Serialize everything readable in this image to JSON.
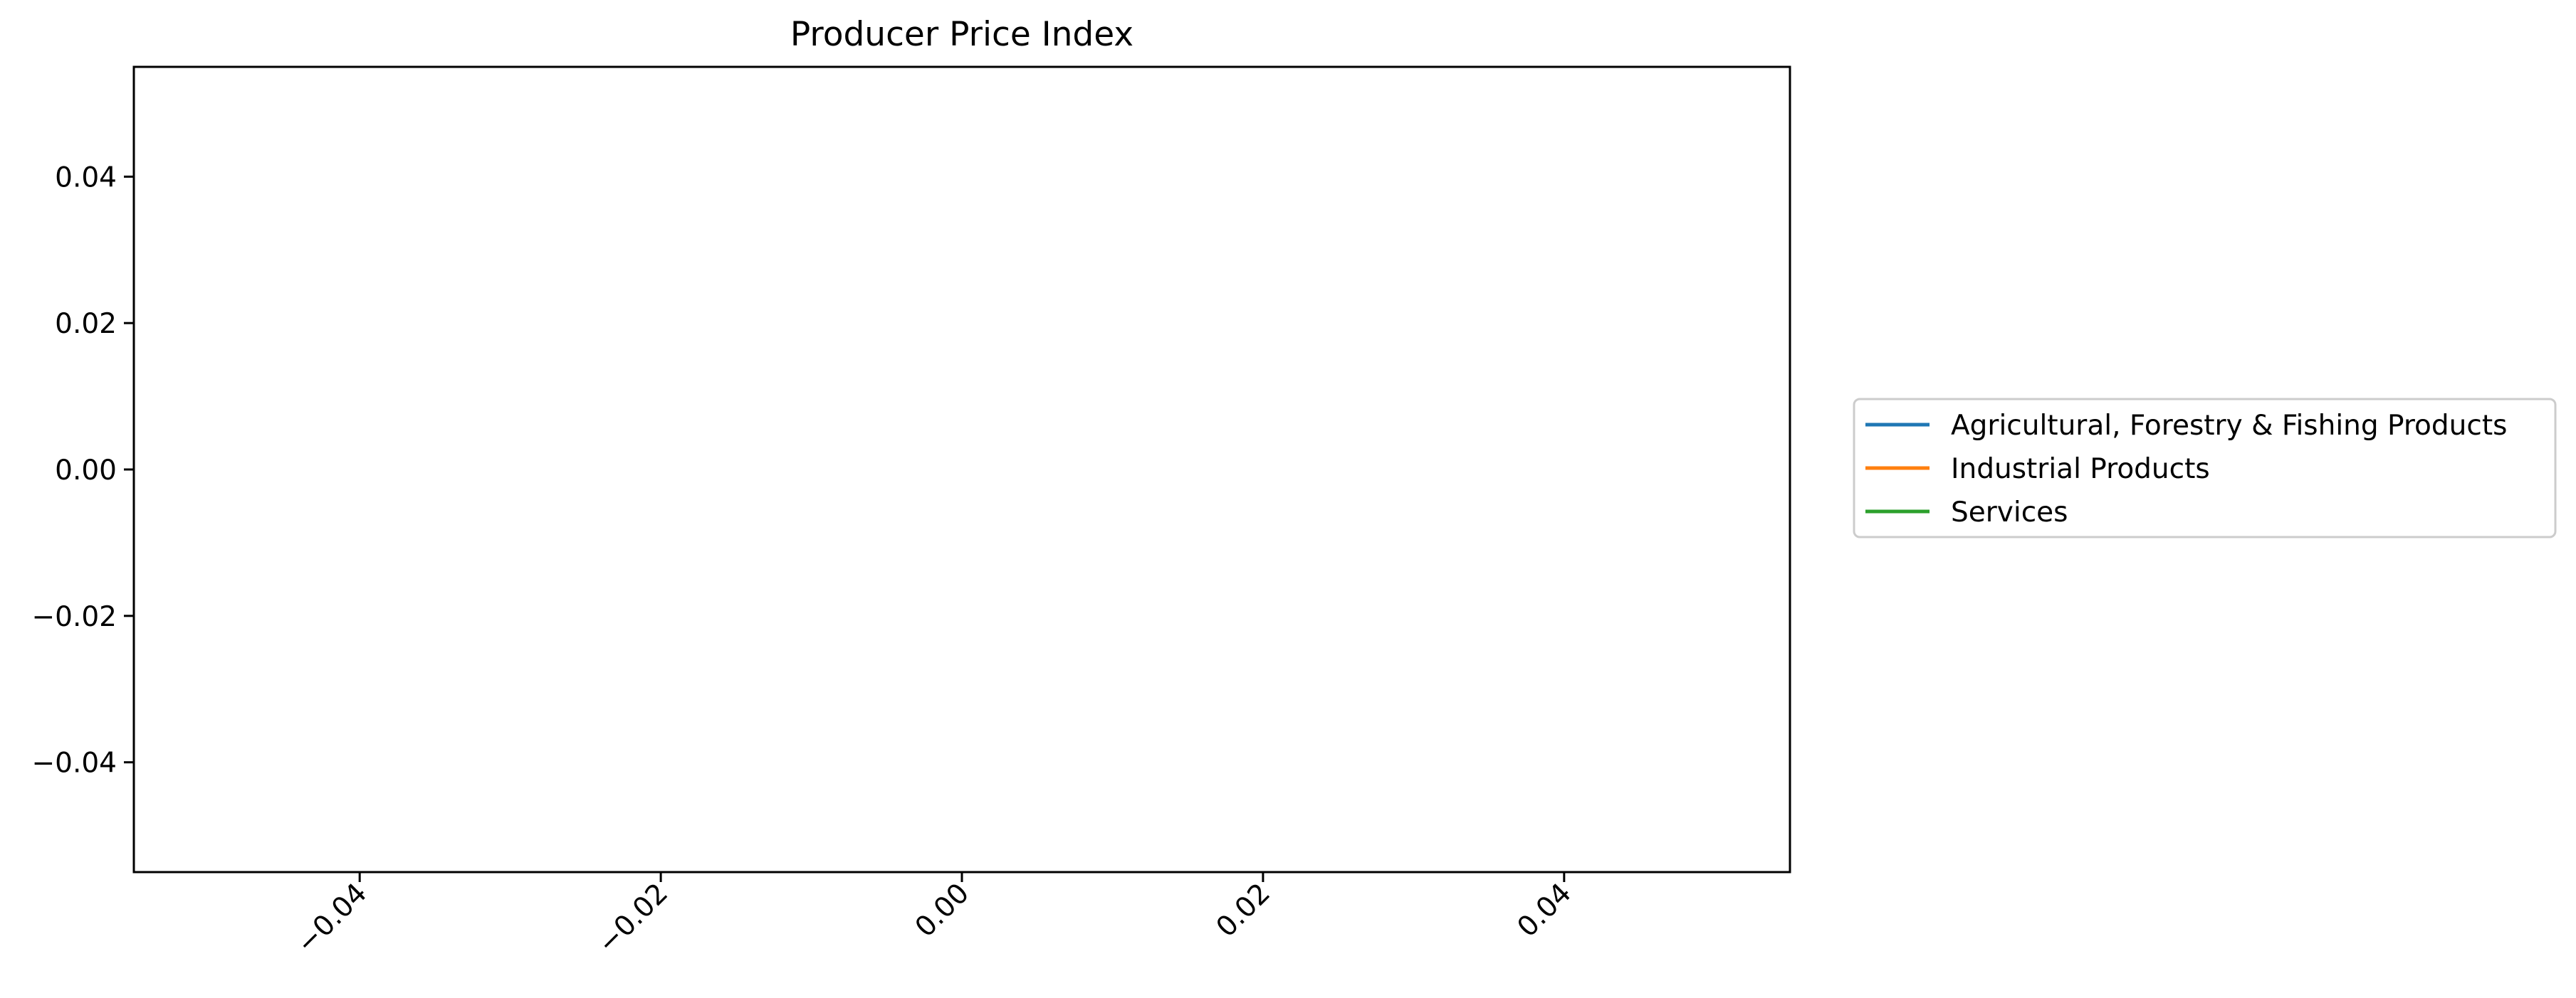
{
  "chart_data": {
    "type": "line",
    "title": "Producer Price Index",
    "xlabel": "",
    "ylabel": "",
    "xlim": [
      -0.055,
      0.055
    ],
    "ylim": [
      -0.055,
      0.055
    ],
    "x_ticks": [
      "−0.04",
      "−0.02",
      "0.00",
      "0.02",
      "0.04"
    ],
    "x_tick_values": [
      -0.04,
      -0.02,
      0.0,
      0.02,
      0.04
    ],
    "y_ticks": [
      "0.04",
      "0.02",
      "0.00",
      "−0.02",
      "−0.04"
    ],
    "y_tick_values": [
      0.04,
      0.02,
      0.0,
      -0.02,
      -0.04
    ],
    "x_tick_rotation": "45 degrees",
    "grid": false,
    "legend_position": "outside-right",
    "series": [
      {
        "name": "Agricultural, Forestry & Fishing Products",
        "color": "#1f77b4",
        "x": [],
        "y": []
      },
      {
        "name": "Industrial Products",
        "color": "#ff7f0e",
        "x": [],
        "y": []
      },
      {
        "name": "Services",
        "color": "#2ca02c",
        "x": [],
        "y": []
      }
    ]
  }
}
